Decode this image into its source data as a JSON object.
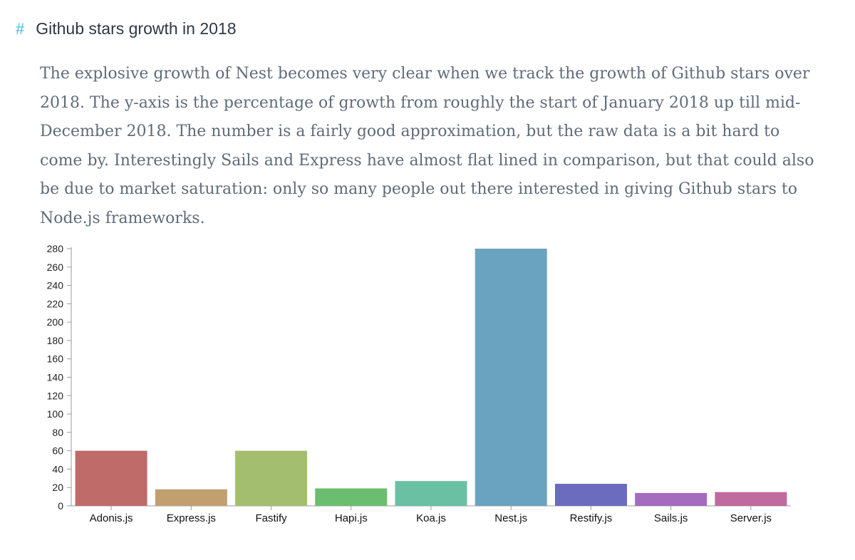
{
  "section": {
    "hash_symbol": "#",
    "title": "Github stars growth in 2018",
    "paragraph": "The explosive growth of Nest becomes very clear when we track the growth of Github stars over 2018. The y-axis is the percentage of growth from roughly the start of January 2018 up till mid-December 2018. The number is a fairly good approximation, but the raw data is a bit hard to come by. Interestingly Sails and Express have almost flat lined in comparison, but that could also be due to market saturation: only so many people out there interested in giving Github stars to Node.js frameworks."
  },
  "colors": {
    "hash": "#3fb8e3",
    "axis": "#9a9a9a"
  },
  "chart_data": {
    "type": "bar",
    "title": "",
    "xlabel": "",
    "ylabel": "",
    "ylim": [
      0,
      280
    ],
    "yticks": [
      0,
      20,
      40,
      60,
      80,
      100,
      120,
      140,
      160,
      180,
      200,
      220,
      240,
      260,
      280
    ],
    "categories": [
      "Adonis.js",
      "Express.js",
      "Fastify",
      "Hapi.js",
      "Koa.js",
      "Nest.js",
      "Restify.js",
      "Sails.js",
      "Server.js"
    ],
    "values": [
      60,
      18,
      60,
      19,
      27,
      280,
      24,
      14,
      15
    ],
    "colors": [
      "#bf6b6a",
      "#c19f6e",
      "#a3be6e",
      "#6bbd6f",
      "#6ac0a3",
      "#6aa3bf",
      "#6b6bbf",
      "#a46bbf",
      "#bf6b9f"
    ]
  }
}
